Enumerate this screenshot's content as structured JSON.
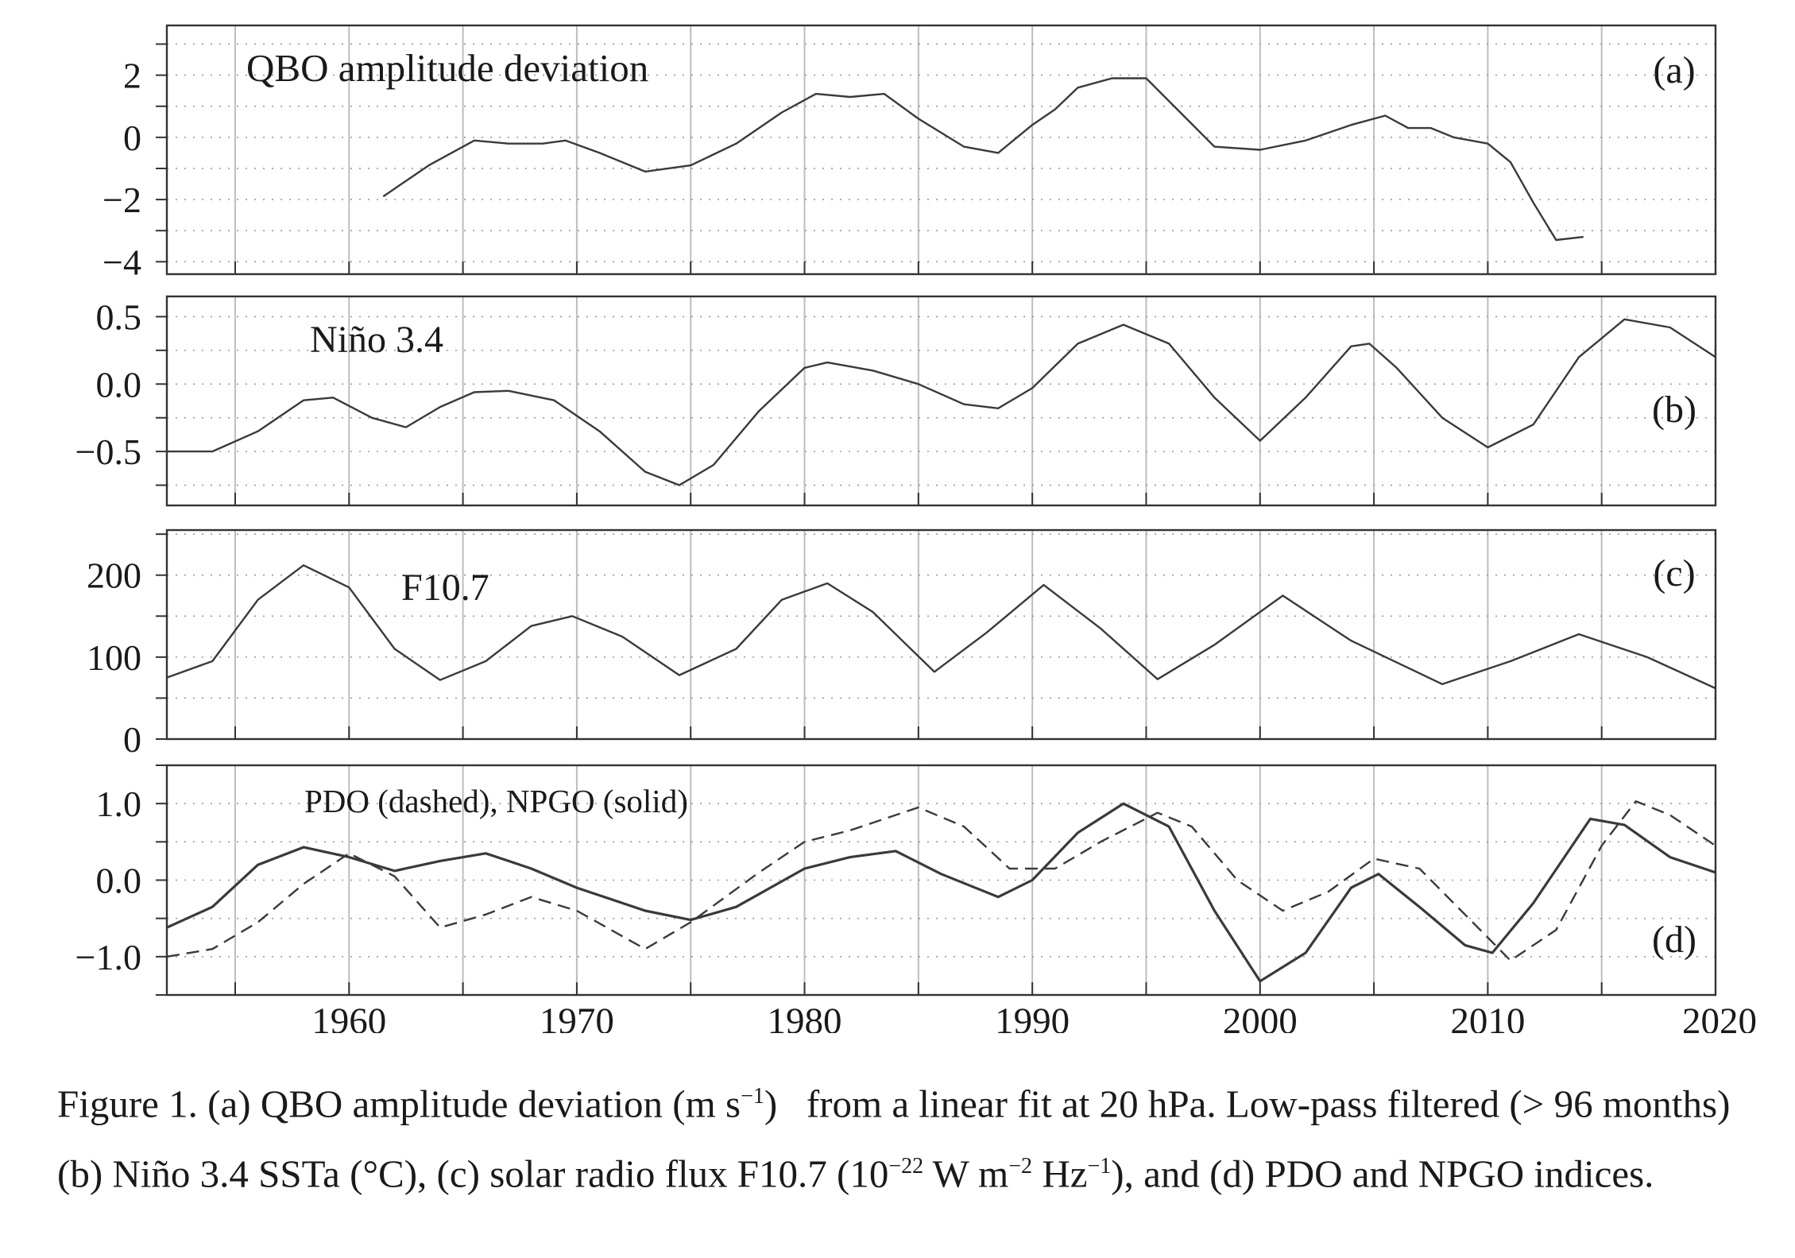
{
  "chart_data": [
    {
      "type": "line",
      "panel_label": "(a)",
      "annotation": "QBO amplitude deviation",
      "xlim": [
        1952,
        2020
      ],
      "ylim": [
        -4.4,
        3.6
      ],
      "yticks": [
        2,
        0,
        -2,
        -4
      ],
      "ytick_labels": [
        "2",
        "0",
        "−2",
        "−4"
      ],
      "series": [
        {
          "style": "solid",
          "x": [
            1961.5,
            1963.5,
            1965.5,
            1967,
            1968.5,
            1969.5,
            1971,
            1973,
            1975,
            1977,
            1979,
            1980.5,
            1982,
            1983.5,
            1985,
            1987,
            1988.5,
            1990,
            1991,
            1992,
            1993.5,
            1995,
            1996.5,
            1998,
            2000,
            2002,
            2004,
            2005.5,
            2006.5,
            2007.5,
            2008.5,
            2010,
            2011,
            2012,
            2013,
            2014.2
          ],
          "y": [
            -1.9,
            -0.9,
            -0.1,
            -0.2,
            -0.2,
            -0.1,
            -0.5,
            -1.1,
            -0.9,
            -0.2,
            0.8,
            1.4,
            1.3,
            1.4,
            0.6,
            -0.3,
            -0.5,
            0.4,
            0.9,
            1.6,
            1.9,
            1.9,
            0.8,
            -0.3,
            -0.4,
            -0.1,
            0.4,
            0.7,
            0.3,
            0.3,
            0.0,
            -0.2,
            -0.8,
            -2.1,
            -3.3,
            -3.2
          ]
        }
      ]
    },
    {
      "type": "line",
      "panel_label": "(b)",
      "annotation": "Niño 3.4",
      "xlim": [
        1952,
        2020
      ],
      "ylim": [
        -0.9,
        0.65
      ],
      "yticks": [
        0.5,
        0.0,
        -0.5
      ],
      "ytick_labels": [
        "0.5",
        "0.0",
        "−0.5"
      ],
      "series": [
        {
          "style": "solid",
          "x": [
            1952,
            1954,
            1956,
            1958,
            1959.3,
            1961,
            1962.5,
            1964,
            1965.5,
            1967,
            1969,
            1971,
            1973,
            1974.5,
            1976,
            1978,
            1980,
            1981,
            1983,
            1985,
            1987,
            1988.5,
            1990,
            1992,
            1994,
            1996,
            1998,
            2000,
            2002,
            2004,
            2004.8,
            2006,
            2008,
            2010,
            2012,
            2014,
            2016,
            2018,
            2020
          ],
          "y": [
            -0.5,
            -0.5,
            -0.35,
            -0.12,
            -0.1,
            -0.25,
            -0.32,
            -0.17,
            -0.06,
            -0.05,
            -0.12,
            -0.35,
            -0.65,
            -0.75,
            -0.6,
            -0.2,
            0.12,
            0.16,
            0.1,
            0.0,
            -0.15,
            -0.18,
            -0.03,
            0.3,
            0.44,
            0.3,
            -0.1,
            -0.42,
            -0.1,
            0.28,
            0.3,
            0.12,
            -0.25,
            -0.47,
            -0.3,
            0.2,
            0.48,
            0.42,
            0.2
          ]
        }
      ]
    },
    {
      "type": "line",
      "panel_label": "(c)",
      "annotation": "F10.7",
      "xlim": [
        1952,
        2020
      ],
      "ylim": [
        0,
        255
      ],
      "yticks": [
        200,
        100,
        0
      ],
      "ytick_labels": [
        "200",
        "100",
        "0"
      ],
      "series": [
        {
          "style": "solid",
          "x": [
            1952,
            1954,
            1956,
            1958,
            1960,
            1962,
            1964,
            1966,
            1968,
            1969.8,
            1972,
            1974.5,
            1977,
            1979,
            1981,
            1983,
            1985.7,
            1988,
            1990.5,
            1993,
            1995.5,
            1998,
            2001,
            2004,
            2008,
            2011,
            2014,
            2017,
            2020
          ],
          "y": [
            75,
            95,
            170,
            212,
            185,
            110,
            72,
            95,
            138,
            150,
            125,
            78,
            110,
            170,
            190,
            155,
            82,
            130,
            188,
            135,
            73,
            115,
            175,
            120,
            67,
            95,
            128,
            100,
            62
          ]
        }
      ]
    },
    {
      "type": "line",
      "panel_label": "(d)",
      "annotation": "PDO (dashed), NPGO (solid)",
      "xlim": [
        1952,
        2020
      ],
      "ylim": [
        -1.5,
        1.5
      ],
      "yticks": [
        1.0,
        0.0,
        -1.0
      ],
      "ytick_labels": [
        "1.0",
        "0.0",
        "−1.0"
      ],
      "series": [
        {
          "name": "PDO",
          "style": "dashed",
          "x": [
            1952,
            1954,
            1956,
            1958,
            1960,
            1962,
            1964,
            1966,
            1968,
            1970,
            1973,
            1975,
            1978,
            1980,
            1982,
            1985,
            1987,
            1989,
            1991,
            1993,
            1995.5,
            1997,
            1999,
            2001,
            2003,
            2005,
            2007,
            2009,
            2011,
            2013,
            2015,
            2016.5,
            2018,
            2020
          ],
          "y": [
            -1.0,
            -0.9,
            -0.55,
            -0.05,
            0.35,
            0.05,
            -0.62,
            -0.45,
            -0.22,
            -0.4,
            -0.9,
            -0.55,
            0.1,
            0.5,
            0.65,
            0.95,
            0.7,
            0.15,
            0.15,
            0.5,
            0.88,
            0.7,
            0.0,
            -0.4,
            -0.15,
            0.28,
            0.15,
            -0.45,
            -1.05,
            -0.65,
            0.45,
            1.03,
            0.85,
            0.45
          ]
        },
        {
          "name": "NPGO",
          "style": "solid",
          "x": [
            1952,
            1954,
            1956,
            1958,
            1960,
            1962,
            1964,
            1966,
            1968,
            1970,
            1973,
            1975,
            1977,
            1980,
            1982,
            1984,
            1986,
            1988.5,
            1990,
            1992,
            1994,
            1996,
            1998,
            2000,
            2002,
            2004,
            2005.2,
            2007,
            2009,
            2010.2,
            2012,
            2014.5,
            2016,
            2018,
            2020
          ],
          "y": [
            -0.62,
            -0.35,
            0.2,
            0.43,
            0.3,
            0.12,
            0.25,
            0.35,
            0.15,
            -0.1,
            -0.4,
            -0.52,
            -0.35,
            0.15,
            0.3,
            0.38,
            0.08,
            -0.22,
            0.0,
            0.62,
            1.0,
            0.7,
            -0.4,
            -1.32,
            -0.95,
            -0.1,
            0.08,
            -0.35,
            -0.85,
            -0.95,
            -0.3,
            0.8,
            0.72,
            0.3,
            0.1
          ]
        }
      ]
    }
  ],
  "x_axis": {
    "ticks": [
      1960,
      1970,
      1980,
      1990,
      2000,
      2010,
      2020
    ],
    "tick_labels": [
      "1960",
      "1970",
      "1980",
      "1990",
      "2000",
      "2010",
      "2020"
    ],
    "gridlines": [
      1955,
      1960,
      1965,
      1970,
      1975,
      1980,
      1985,
      1990,
      1995,
      2000,
      2005,
      2010,
      2015
    ]
  },
  "caption": {
    "lead": "Figure 1. (a) QBO amplitude deviation (m s",
    "sup1": "−1",
    "part2": ")  from a linear fit at 20 hPa. Low-pass filtered (> 96 months) (b) Niño 3.4 SSTa (°C), (c) solar radio flux F10.7 (10",
    "sup2": "−22",
    "part3": " W m",
    "sup3": "−2",
    "part4": " Hz",
    "sup4": "−1",
    "part5": "), and (d) PDO and NPGO indices."
  }
}
